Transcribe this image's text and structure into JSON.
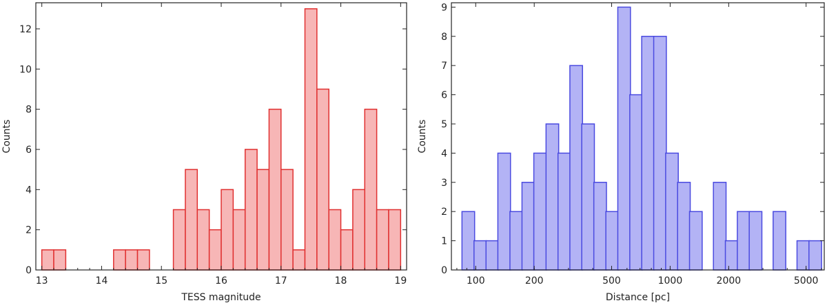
{
  "chart_data": [
    {
      "type": "bar",
      "subtype": "histogram",
      "title": "",
      "xlabel": "TESS magnitude",
      "ylabel": "Counts",
      "xscale": "linear",
      "xlim": [
        12.9,
        19.1
      ],
      "ylim": [
        0,
        13.3
      ],
      "xticks": [
        13,
        14,
        15,
        16,
        17,
        18,
        19
      ],
      "yticks": [
        0,
        2,
        4,
        6,
        8,
        10,
        12
      ],
      "bin_width": 0.2,
      "bins": [
        {
          "x0": 13.0,
          "x1": 13.2,
          "count": 1
        },
        {
          "x0": 13.2,
          "x1": 13.4,
          "count": 1
        },
        {
          "x0": 14.2,
          "x1": 14.4,
          "count": 1
        },
        {
          "x0": 14.4,
          "x1": 14.6,
          "count": 1
        },
        {
          "x0": 14.6,
          "x1": 14.8,
          "count": 1
        },
        {
          "x0": 15.2,
          "x1": 15.4,
          "count": 3
        },
        {
          "x0": 15.4,
          "x1": 15.6,
          "count": 5
        },
        {
          "x0": 15.6,
          "x1": 15.8,
          "count": 3
        },
        {
          "x0": 15.8,
          "x1": 16.0,
          "count": 2
        },
        {
          "x0": 16.0,
          "x1": 16.2,
          "count": 4
        },
        {
          "x0": 16.2,
          "x1": 16.4,
          "count": 3
        },
        {
          "x0": 16.4,
          "x1": 16.6,
          "count": 6
        },
        {
          "x0": 16.6,
          "x1": 16.8,
          "count": 5
        },
        {
          "x0": 16.8,
          "x1": 17.0,
          "count": 8
        },
        {
          "x0": 17.0,
          "x1": 17.2,
          "count": 5
        },
        {
          "x0": 17.2,
          "x1": 17.4,
          "count": 1
        },
        {
          "x0": 17.4,
          "x1": 17.6,
          "count": 13
        },
        {
          "x0": 17.6,
          "x1": 17.8,
          "count": 9
        },
        {
          "x0": 17.8,
          "x1": 18.0,
          "count": 3
        },
        {
          "x0": 18.0,
          "x1": 18.2,
          "count": 2
        },
        {
          "x0": 18.2,
          "x1": 18.4,
          "count": 4
        },
        {
          "x0": 18.4,
          "x1": 18.6,
          "count": 8
        },
        {
          "x0": 18.6,
          "x1": 18.8,
          "count": 3
        },
        {
          "x0": 18.8,
          "x1": 19.0,
          "count": 3
        }
      ],
      "fill_color": "#f7b6b6",
      "edge_color": "#e03030"
    },
    {
      "type": "bar",
      "subtype": "histogram",
      "title": "",
      "xlabel": "Distance [pc]",
      "ylabel": "Counts",
      "xscale": "log",
      "xlim": [
        75,
        6200
      ],
      "ylim": [
        0,
        9.15
      ],
      "xticks": [
        100,
        200,
        500,
        1000,
        2000,
        5000
      ],
      "yticks": [
        0,
        1,
        2,
        3,
        4,
        5,
        6,
        7,
        8,
        9
      ],
      "log_bin_width": 0.065,
      "bins": [
        {
          "x0": 85,
          "count": 2
        },
        {
          "x0": 98,
          "count": 1
        },
        {
          "x0": 113,
          "count": 1
        },
        {
          "x0": 130,
          "count": 4
        },
        {
          "x0": 150,
          "count": 2
        },
        {
          "x0": 173,
          "count": 3
        },
        {
          "x0": 199,
          "count": 4
        },
        {
          "x0": 230,
          "count": 5
        },
        {
          "x0": 265,
          "count": 4
        },
        {
          "x0": 305,
          "count": 7
        },
        {
          "x0": 351,
          "count": 5
        },
        {
          "x0": 405,
          "count": 3
        },
        {
          "x0": 467,
          "count": 2
        },
        {
          "x0": 538,
          "count": 9
        },
        {
          "x0": 620,
          "count": 6
        },
        {
          "x0": 714,
          "count": 8
        },
        {
          "x0": 823,
          "count": 8
        },
        {
          "x0": 948,
          "count": 4
        },
        {
          "x0": 1092,
          "count": 3
        },
        {
          "x0": 1258,
          "count": 2
        },
        {
          "x0": 1449,
          "count": 0
        },
        {
          "x0": 1669,
          "count": 3
        },
        {
          "x0": 1923,
          "count": 1
        },
        {
          "x0": 2215,
          "count": 2
        },
        {
          "x0": 2551,
          "count": 2
        },
        {
          "x0": 2939,
          "count": 0
        },
        {
          "x0": 3385,
          "count": 2
        },
        {
          "x0": 3899,
          "count": 0
        },
        {
          "x0": 4491,
          "count": 1
        },
        {
          "x0": 5173,
          "count": 1
        }
      ],
      "fill_color": "#b3b3f5",
      "edge_color": "#4a4ae0"
    }
  ]
}
